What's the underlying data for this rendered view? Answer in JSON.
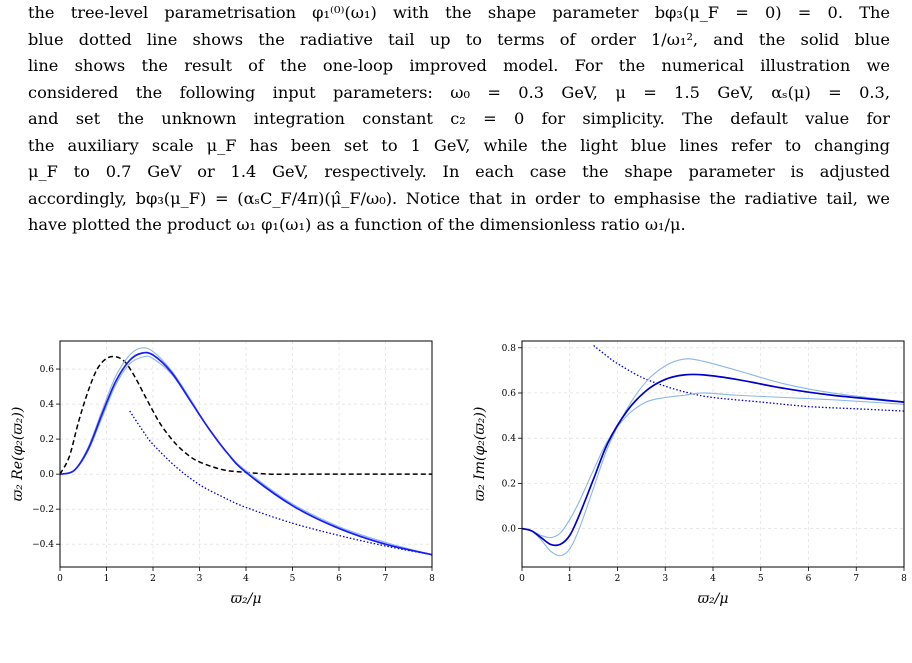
{
  "paragraph": {
    "lines": [
      "the tree-level parametrisation φ₁⁽⁰⁾(ω₁) with the shape parameter bφ₃(μ_F = 0) = 0. The",
      "blue dotted line shows the radiative tail up to terms of order 1/ω₁², and the solid blue",
      "line shows the result of the one-loop improved model. For the numerical illustration we",
      "considered the following input parameters: ω₀ = 0.3 GeV, μ = 1.5 GeV, αₛ(μ) = 0.3,",
      "and set the unknown integration constant c₂ = 0 for simplicity. The default value for",
      "the auxiliary scale μ_F has been set to 1 GeV, while the light blue lines refer to changing",
      "μ_F to 0.7 GeV or 1.4 GeV, respectively. In each case the shape parameter is adjusted",
      "accordingly, bφ₃(μ_F) = (αₛC_F/4π)(μ̂_F/ω₀). Notice that in order to emphasise the radiative tail, we",
      "have plotted the product ω₁ φ₁(ω₁) as a function of the dimensionless ratio ω₁/μ."
    ]
  },
  "colors": {
    "dark_blue": "#0000cc",
    "solid_blue": "#1a1aff",
    "light_blue": "#8ab8e6",
    "dashed_black": "#000000"
  },
  "chart_data": [
    {
      "type": "line",
      "title": "",
      "xlabel": "ϖ₂/μ",
      "ylabel": "ϖ₂ Re(φ₂(ϖ₂))",
      "xlim": [
        0,
        8
      ],
      "ylim": [
        -0.53,
        0.76
      ],
      "xticks": [
        0,
        1,
        2,
        3,
        4,
        5,
        6,
        7,
        8
      ],
      "yticks": [
        -0.4,
        -0.2,
        0.0,
        0.2,
        0.4,
        0.6
      ],
      "ytick_labels": [
        "−0.4",
        "−0.2",
        "0.0",
        "0.2",
        "0.4",
        "0.6"
      ],
      "grid": true,
      "series": [
        {
          "style": "dashed",
          "color": "#000000",
          "x": [
            0,
            0.2,
            0.4,
            0.6,
            0.8,
            1.0,
            1.2,
            1.4,
            1.6,
            1.8,
            2.0,
            2.2,
            2.5,
            2.8,
            3.0,
            3.3,
            3.6,
            4.0,
            4.5,
            5.0,
            6.0,
            7.0,
            8.0
          ],
          "y": [
            0,
            0.1,
            0.3,
            0.47,
            0.6,
            0.66,
            0.67,
            0.64,
            0.56,
            0.46,
            0.36,
            0.27,
            0.17,
            0.1,
            0.07,
            0.04,
            0.02,
            0.01,
            0.0,
            0.0,
            0.0,
            0.0,
            0.0
          ]
        },
        {
          "style": "dotted",
          "color": "#0000cc",
          "x": [
            1.5,
            1.8,
            2.0,
            2.5,
            3.0,
            3.5,
            4.0,
            5.0,
            6.0,
            7.0,
            8.0
          ],
          "y": [
            0.36,
            0.24,
            0.17,
            0.04,
            -0.06,
            -0.13,
            -0.19,
            -0.28,
            -0.35,
            -0.41,
            -0.46
          ]
        },
        {
          "style": "solid",
          "color": "#8ab8e6",
          "x": [
            0,
            0.3,
            0.6,
            0.9,
            1.2,
            1.5,
            1.75,
            2.0,
            2.4,
            2.8,
            3.2,
            3.6,
            4.0,
            5.0,
            6.0,
            7.0,
            8.0
          ],
          "y": [
            0,
            0.02,
            0.15,
            0.36,
            0.56,
            0.68,
            0.72,
            0.7,
            0.59,
            0.43,
            0.26,
            0.12,
            0.01,
            -0.17,
            -0.3,
            -0.39,
            -0.46
          ]
        },
        {
          "style": "solid",
          "color": "#8ab8e6",
          "x": [
            0,
            0.3,
            0.6,
            0.9,
            1.2,
            1.5,
            1.8,
            2.0,
            2.4,
            2.8,
            3.2,
            3.6,
            4.0,
            5.0,
            6.0,
            7.0,
            8.0
          ],
          "y": [
            0,
            0.02,
            0.13,
            0.32,
            0.51,
            0.63,
            0.67,
            0.66,
            0.57,
            0.42,
            0.26,
            0.12,
            0.02,
            -0.17,
            -0.3,
            -0.39,
            -0.46
          ]
        },
        {
          "style": "solid",
          "color": "#1a1aff",
          "x": [
            0,
            0.3,
            0.6,
            0.9,
            1.2,
            1.5,
            1.75,
            2.0,
            2.4,
            2.8,
            3.2,
            3.6,
            4.0,
            5.0,
            6.0,
            7.0,
            8.0
          ],
          "y": [
            0,
            0.02,
            0.14,
            0.34,
            0.53,
            0.65,
            0.69,
            0.68,
            0.58,
            0.42,
            0.26,
            0.12,
            0.01,
            -0.18,
            -0.31,
            -0.4,
            -0.46
          ]
        }
      ]
    },
    {
      "type": "line",
      "title": "",
      "xlabel": "ϖ₂/μ",
      "ylabel": "ϖ₂ Im(φ₂(ϖ₂))",
      "xlim": [
        0,
        8
      ],
      "ylim": [
        -0.17,
        0.83
      ],
      "xticks": [
        0,
        1,
        2,
        3,
        4,
        5,
        6,
        7,
        8
      ],
      "yticks": [
        0.0,
        0.2,
        0.4,
        0.6,
        0.8
      ],
      "ytick_labels": [
        "0.0",
        "0.2",
        "0.4",
        "0.6",
        "0.8"
      ],
      "grid": true,
      "series": [
        {
          "style": "dotted",
          "color": "#0000cc",
          "x": [
            1.5,
            1.8,
            2.0,
            2.5,
            3.0,
            3.5,
            4.0,
            5.0,
            6.0,
            7.0,
            8.0
          ],
          "y": [
            0.81,
            0.76,
            0.73,
            0.67,
            0.63,
            0.6,
            0.58,
            0.56,
            0.54,
            0.53,
            0.52
          ]
        },
        {
          "style": "solid",
          "color": "#8ab8e6",
          "x": [
            0,
            0.2,
            0.4,
            0.6,
            0.8,
            1.0,
            1.2,
            1.5,
            1.8,
            2.2,
            2.6,
            3.0,
            3.4,
            3.8,
            4.5,
            5.5,
            6.5,
            8.0
          ],
          "y": [
            0,
            -0.01,
            -0.05,
            -0.1,
            -0.12,
            -0.09,
            0.0,
            0.18,
            0.36,
            0.53,
            0.65,
            0.72,
            0.75,
            0.74,
            0.7,
            0.64,
            0.6,
            0.56
          ]
        },
        {
          "style": "solid",
          "color": "#8ab8e6",
          "x": [
            0,
            0.2,
            0.4,
            0.6,
            0.8,
            1.0,
            1.2,
            1.5,
            1.8,
            2.2,
            2.6,
            3.0,
            3.4,
            3.8,
            4.5,
            5.5,
            6.5,
            8.0
          ],
          "y": [
            0,
            -0.01,
            -0.03,
            -0.04,
            -0.02,
            0.04,
            0.12,
            0.26,
            0.39,
            0.5,
            0.56,
            0.58,
            0.59,
            0.6,
            0.59,
            0.58,
            0.57,
            0.55
          ]
        },
        {
          "style": "solid",
          "color": "#0000cc",
          "x": [
            0,
            0.2,
            0.4,
            0.6,
            0.8,
            1.0,
            1.2,
            1.5,
            1.8,
            2.2,
            2.6,
            3.0,
            3.4,
            3.8,
            4.5,
            5.5,
            6.5,
            8.0
          ],
          "y": [
            0,
            -0.01,
            -0.04,
            -0.07,
            -0.07,
            -0.03,
            0.06,
            0.22,
            0.38,
            0.52,
            0.61,
            0.66,
            0.68,
            0.68,
            0.66,
            0.62,
            0.59,
            0.56
          ]
        }
      ]
    }
  ]
}
